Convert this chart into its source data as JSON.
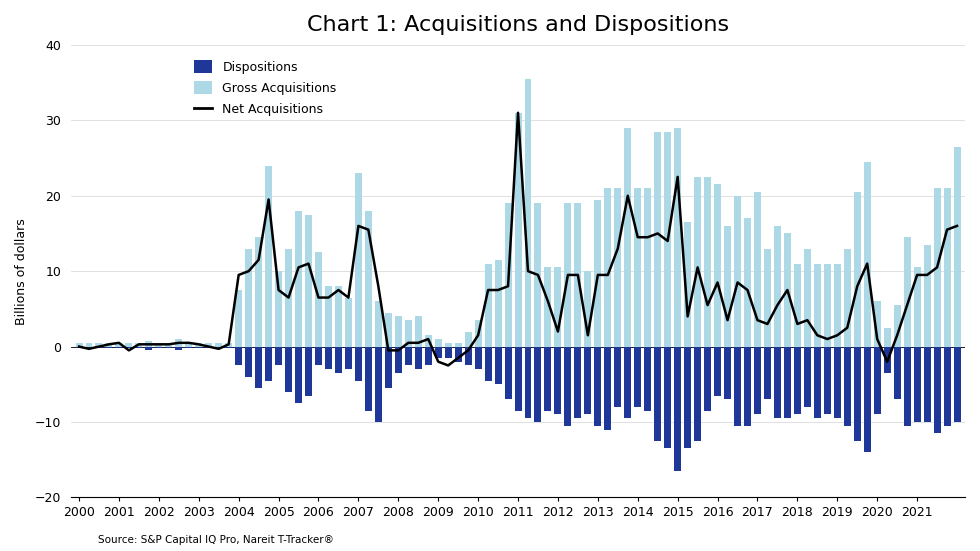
{
  "title": "Chart 1: Acquisitions and Dispositions",
  "ylabel": "Billions of dollars",
  "source": "Source: S&P Capital IQ Pro, Nareit T-Tracker®",
  "ylim": [
    -20,
    40
  ],
  "yticks": [
    -20,
    -10,
    0,
    10,
    20,
    30,
    40
  ],
  "bar_width": 0.7,
  "gross_acq_color": "#ADD8E6",
  "dispositions_color": "#1E3799",
  "net_acq_color": "#000000",
  "background_color": "#FFFFFF",
  "gross_acquisitions": [
    0.5,
    0.5,
    0.5,
    0.5,
    0.5,
    0.5,
    0.5,
    0.8,
    0.5,
    0.5,
    1.0,
    0.5,
    0.5,
    0.5,
    0.5,
    0.5,
    7.5,
    13.0,
    14.5,
    24.0,
    10.0,
    13.0,
    18.0,
    17.5,
    12.5,
    8.0,
    8.0,
    6.5,
    23.0,
    18.0,
    6.0,
    4.5,
    4.0,
    3.5,
    4.0,
    1.5,
    1.0,
    0.5,
    0.5,
    2.0,
    3.5,
    11.0,
    11.5,
    19.0,
    31.0,
    35.5,
    19.0,
    10.5,
    10.5,
    19.0,
    19.0,
    10.0,
    19.5,
    21.0,
    21.0,
    29.0,
    21.0,
    21.0,
    28.5,
    28.5,
    29.0,
    16.5,
    22.5,
    22.5,
    21.5,
    16.0,
    20.0,
    17.0,
    20.5,
    13.0,
    16.0,
    15.0,
    11.0,
    13.0,
    11.0,
    11.0,
    11.0,
    13.0,
    20.5,
    24.5,
    6.0,
    2.5,
    5.5,
    14.5,
    10.5,
    13.5,
    21.0,
    21.0,
    26.5
  ],
  "dispositions": [
    -0.2,
    -0.2,
    -0.2,
    -0.2,
    -0.2,
    -0.2,
    -0.2,
    -0.5,
    -0.2,
    -0.2,
    -0.5,
    -0.2,
    -0.2,
    -0.2,
    -0.2,
    -0.2,
    -2.5,
    -4.0,
    -5.5,
    -4.5,
    -2.5,
    -6.0,
    -7.5,
    -6.5,
    -2.5,
    -3.0,
    -3.5,
    -3.0,
    -4.5,
    -8.5,
    -10.0,
    -5.5,
    -3.5,
    -2.5,
    -3.0,
    -2.5,
    -1.5,
    -1.5,
    -2.0,
    -2.5,
    -3.0,
    -4.5,
    -5.0,
    -7.0,
    -8.5,
    -9.5,
    -10.0,
    -8.5,
    -9.0,
    -10.5,
    -9.5,
    -9.0,
    -10.5,
    -11.0,
    -8.0,
    -9.5,
    -8.0,
    -8.5,
    -12.5,
    -13.5,
    -16.5,
    -13.5,
    -12.5,
    -8.5,
    -6.5,
    -7.0,
    -10.5,
    -10.5,
    -9.0,
    -7.0,
    -9.5,
    -9.5,
    -9.0,
    -8.0,
    -9.5,
    -9.0,
    -9.5,
    -10.5,
    -12.5,
    -14.0,
    -9.0,
    -3.5,
    -7.0,
    -10.5,
    -10.0,
    -10.0,
    -11.5,
    -10.5,
    -10.0
  ],
  "net_acquisitions": [
    0.0,
    -0.3,
    0.0,
    0.3,
    0.5,
    -0.5,
    0.3,
    0.3,
    0.3,
    0.3,
    0.5,
    0.5,
    0.3,
    0.0,
    -0.3,
    0.3,
    9.5,
    10.0,
    11.5,
    19.5,
    7.5,
    6.5,
    10.5,
    11.0,
    6.5,
    6.5,
    7.5,
    6.5,
    16.0,
    15.5,
    8.0,
    -0.5,
    -0.5,
    0.5,
    0.5,
    1.0,
    -2.0,
    -2.5,
    -1.5,
    -0.5,
    1.5,
    7.5,
    7.5,
    8.0,
    31.0,
    10.0,
    9.5,
    6.0,
    2.0,
    9.5,
    9.5,
    1.5,
    9.5,
    9.5,
    13.0,
    20.0,
    14.5,
    14.5,
    15.0,
    14.0,
    22.5,
    4.0,
    10.5,
    5.5,
    8.5,
    3.5,
    8.5,
    7.5,
    3.5,
    3.0,
    5.5,
    7.5,
    3.0,
    3.5,
    1.5,
    1.0,
    1.5,
    2.5,
    8.0,
    11.0,
    1.0,
    -2.0,
    1.5,
    5.5,
    9.5,
    9.5,
    10.5,
    15.5,
    16.0
  ],
  "x_year_labels": [
    2000,
    2001,
    2002,
    2003,
    2004,
    2005,
    2006,
    2007,
    2008,
    2009,
    2010,
    2011,
    2012,
    2013,
    2014,
    2015,
    2016,
    2017,
    2018,
    2019,
    2020,
    2021
  ]
}
